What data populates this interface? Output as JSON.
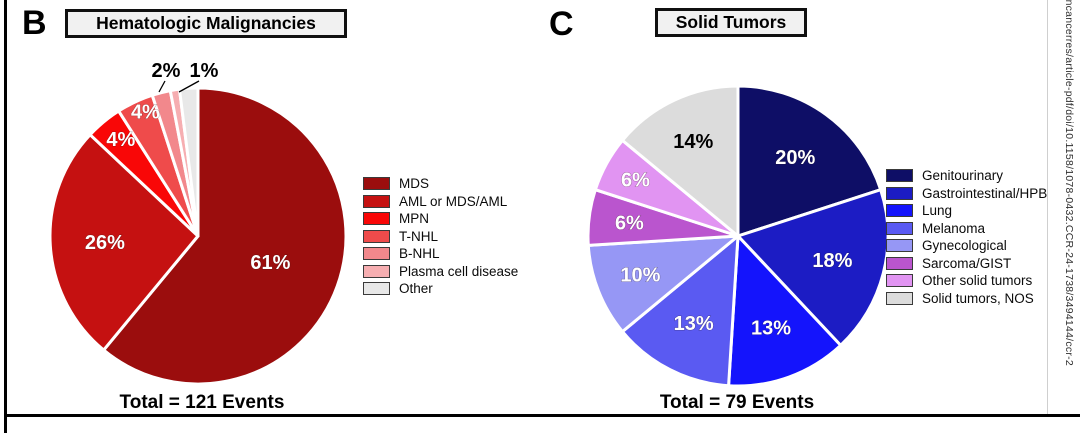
{
  "panels": [
    {
      "letter": "B",
      "title": "Hematologic Malignancies",
      "total_label": "Total = 121 Events"
    },
    {
      "letter": "C",
      "title": "Solid Tumors",
      "total_label": "Total = 79 Events"
    }
  ],
  "chart_data": [
    {
      "type": "pie",
      "title": "Hematologic Malignancies",
      "total_events": 121,
      "total_label": "Total = 121 Events",
      "start_angle": "12 o'clock, clockwise",
      "slices": [
        {
          "name": "MDS",
          "pct": 61,
          "display": "61%",
          "color": "#9b0d0d",
          "label_style": "inside",
          "label_color": "#FFFFFF"
        },
        {
          "name": "AML or MDS/AML",
          "pct": 26,
          "display": "26%",
          "color": "#c51111",
          "label_style": "inside",
          "label_color": "#FFFFFF"
        },
        {
          "name": "MPN",
          "pct": 4,
          "display": "4%",
          "color": "#f90707",
          "label_style": "inside",
          "label_color": "#FFFFFF"
        },
        {
          "name": "T-NHL",
          "pct": 4,
          "display": "4%",
          "color": "#ef4b4b",
          "label_style": "inside",
          "label_color": "#FFFFFF"
        },
        {
          "name": "B-NHL",
          "pct": 2,
          "display": "2%",
          "color": "#f2888c",
          "label_style": "outside",
          "label_color": "#000000"
        },
        {
          "name": "Plasma cell disease",
          "pct": 1,
          "display": "1%",
          "color": "#f6aeb1",
          "label_style": "outside",
          "label_color": "#000000"
        },
        {
          "name": "Other",
          "pct": 2,
          "display": "",
          "color": "#e8e8e8",
          "label_style": "none",
          "label_color": "#000000"
        }
      ]
    },
    {
      "type": "pie",
      "title": "Solid Tumors",
      "total_events": 79,
      "total_label": "Total = 79 Events",
      "start_angle": "12 o'clock, clockwise",
      "slices": [
        {
          "name": "Genitourinary",
          "pct": 20,
          "display": "20%",
          "color": "#0e0e66",
          "label_style": "inside",
          "label_color": "#FFFFFF"
        },
        {
          "name": "Gastrointestinal/HPB",
          "pct": 18,
          "display": "18%",
          "color": "#1c1cc4",
          "label_style": "inside",
          "label_color": "#FFFFFF"
        },
        {
          "name": "Lung",
          "pct": 13,
          "display": "13%",
          "color": "#1414fc",
          "label_style": "inside",
          "label_color": "#FFFFFF"
        },
        {
          "name": "Melanoma",
          "pct": 13,
          "display": "13%",
          "color": "#5a5af2",
          "label_style": "inside",
          "label_color": "#FFFFFF"
        },
        {
          "name": "Gynecological",
          "pct": 10,
          "display": "10%",
          "color": "#9697f5",
          "label_style": "inside",
          "label_color": "#FFFFFF"
        },
        {
          "name": "Sarcoma/GIST",
          "pct": 6,
          "display": "6%",
          "color": "#ba55ce",
          "label_style": "inside",
          "label_color": "#FFFFFF"
        },
        {
          "name": "Other solid tumors",
          "pct": 6,
          "display": "6%",
          "color": "#e194f2",
          "label_style": "inside",
          "label_color": "#FFFFFF"
        },
        {
          "name": "Solid tumors, NOS",
          "pct": 14,
          "display": "14%",
          "color": "#dcdcdc",
          "label_style": "inside",
          "label_color": "#000000"
        }
      ]
    }
  ],
  "watermark": {
    "text": "incancerres/article-pdf/doi/10.1158/1078-0432.CCR-24-1738/3494144/ccr-2"
  }
}
